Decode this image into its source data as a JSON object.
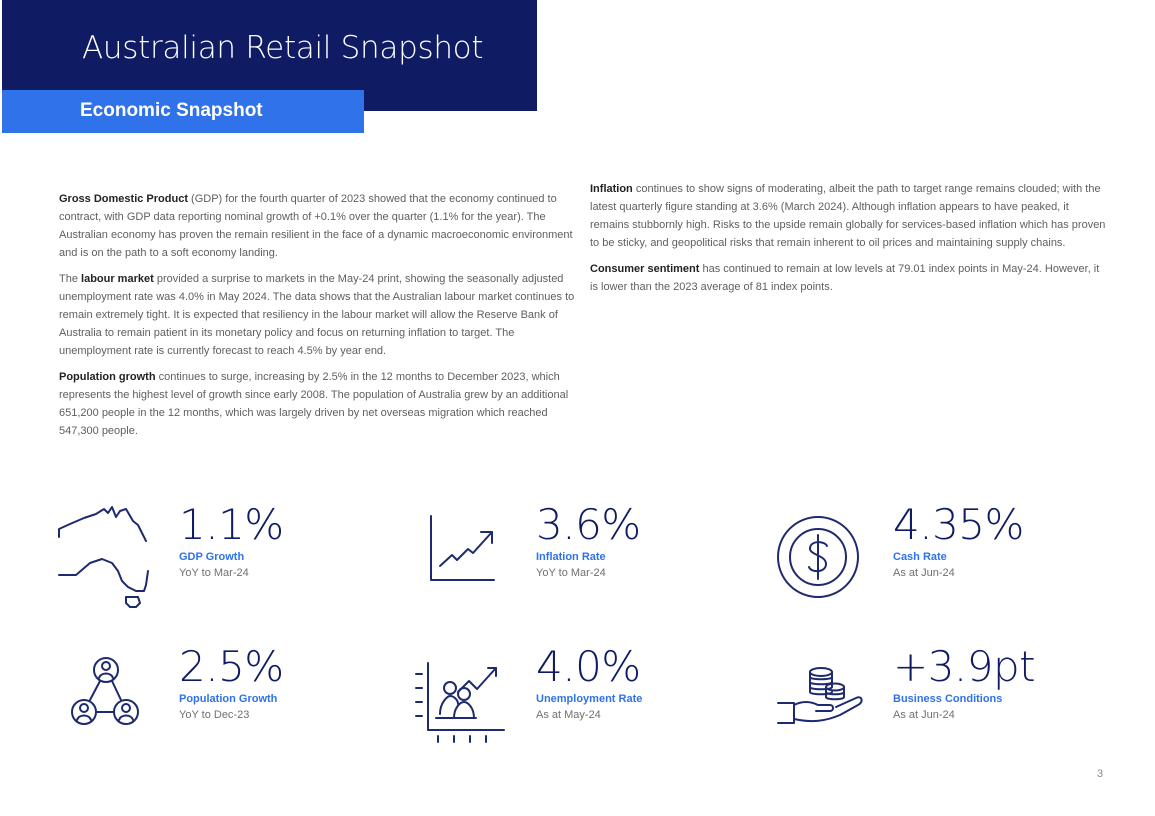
{
  "header": {
    "title": "Australian Retail Snapshot",
    "subtitle": "Economic Snapshot"
  },
  "paragraphs": {
    "gdp": {
      "lead": "Gross Domestic Product",
      "text": " (GDP) for the fourth quarter of 2023 showed that the economy continued to contract, with GDP data reporting nominal growth of +0.1% over the quarter (1.1% for the year). The Australian economy has proven the remain resilient in the face of a dynamic macroeconomic environment and is on the path to a soft economy landing."
    },
    "labour": {
      "pre": "The ",
      "lead": "labour market",
      "text": " provided a surprise to markets in the May-24 print, showing the seasonally adjusted unemployment rate was 4.0% in May 2024. The data shows that the Australian labour market continues to remain extremely tight. It is expected that resiliency in the labour market will allow the Reserve Bank of Australia to remain patient in its monetary policy and focus on returning inflation to target. The unemployment rate is currently forecast to reach 4.5% by year end."
    },
    "population": {
      "lead": "Population growth",
      "text": " continues to surge, increasing by 2.5% in the 12 months to December 2023, which represents the highest level of growth since early 2008. The population of Australia grew by an additional 651,200 people in the 12 months, which was largely driven by net overseas migration which reached 547,300 people."
    },
    "inflation": {
      "lead": "Inflation",
      "text": " continues to show signs of moderating, albeit the path to target range remains clouded; with the latest quarterly figure standing at 3.6% (March 2024). Although inflation appears to have peaked, it remains stubbornly high. Risks to the upside remain globally for services-based inflation which has proven to be sticky, and geopolitical risks that remain inherent to oil prices and maintaining supply chains."
    },
    "consumer": {
      "lead": "Consumer sentiment",
      "text": " has continued to remain at low levels at 79.01 index points in May-24. However, it is lower than the 2023 average of 81 index points."
    }
  },
  "stats": {
    "gdp": {
      "value": "1.1%",
      "label": "GDP Growth",
      "sub": "YoY to Mar-24",
      "icon": "australia-map-icon"
    },
    "inflation": {
      "value": "3.6%",
      "label": "Inflation Rate",
      "sub": "YoY to Mar-24",
      "icon": "line-chart-icon"
    },
    "cash": {
      "value": "4.35%",
      "label": "Cash Rate",
      "sub": "As at Jun-24",
      "icon": "dollar-circle-icon"
    },
    "population": {
      "value": "2.5%",
      "label": "Population Growth",
      "sub": "YoY to Dec-23",
      "icon": "people-network-icon"
    },
    "unemployment": {
      "value": "4.0%",
      "label": "Unemployment Rate",
      "sub": "As at May-24",
      "icon": "people-chart-icon"
    },
    "business": {
      "value": "+3.9pt",
      "label": "Business Conditions",
      "sub": "As at Jun-24",
      "icon": "coins-hand-icon"
    }
  },
  "colors": {
    "navy": "#0f1b62",
    "blue": "#2f72ea",
    "icon_stroke": "#1e2a6e"
  },
  "page_number": "3"
}
